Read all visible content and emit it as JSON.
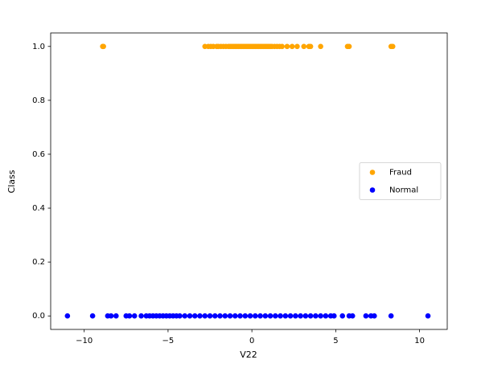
{
  "chart_data": {
    "type": "scatter",
    "xlabel": "V22",
    "ylabel": "Class",
    "xlim": [
      -12,
      11.65
    ],
    "ylim": [
      -0.05,
      1.05
    ],
    "xticks": [
      {
        "value": -10,
        "label": "−10"
      },
      {
        "value": -5,
        "label": "−5"
      },
      0,
      5,
      10
    ],
    "yticks": [
      {
        "value": 0,
        "label": "0.0"
      },
      {
        "value": 0.2,
        "label": "0.2"
      },
      {
        "value": 0.4,
        "label": "0.4"
      },
      {
        "value": 0.6,
        "label": "0.6"
      },
      {
        "value": 0.8,
        "label": "0.8"
      },
      {
        "value": 1,
        "label": "1.0"
      }
    ],
    "legend": "center right",
    "series": [
      {
        "name": "Fraud",
        "color": "#ffa500",
        "x": [
          -8.9,
          -8.85,
          -2.8,
          -2.6,
          -2.45,
          -2.3,
          -2.1,
          -2.0,
          -1.85,
          -1.7,
          -1.55,
          -1.4,
          -1.3,
          -1.2,
          -1.1,
          -1.0,
          -0.9,
          -0.8,
          -0.7,
          -0.6,
          -0.5,
          -0.4,
          -0.3,
          -0.2,
          -0.1,
          0,
          0.1,
          0.2,
          0.3,
          0.4,
          0.5,
          0.6,
          0.7,
          0.8,
          0.9,
          1.0,
          1.1,
          1.2,
          1.35,
          1.5,
          1.65,
          1.8,
          2.1,
          2.4,
          2.7,
          3.1,
          3.4,
          3.5,
          4.1,
          5.7,
          5.8,
          8.3,
          8.4
        ],
        "values": [
          1,
          1,
          1,
          1,
          1,
          1,
          1,
          1,
          1,
          1,
          1,
          1,
          1,
          1,
          1,
          1,
          1,
          1,
          1,
          1,
          1,
          1,
          1,
          1,
          1,
          1,
          1,
          1,
          1,
          1,
          1,
          1,
          1,
          1,
          1,
          1,
          1,
          1,
          1,
          1,
          1,
          1,
          1,
          1,
          1,
          1,
          1,
          1,
          1,
          1,
          1,
          1,
          1
        ]
      },
      {
        "name": "Normal",
        "color": "#0000ff",
        "x": [
          -11,
          -9.5,
          -8.6,
          -8.4,
          -8.1,
          -7.5,
          -7.3,
          -7.0,
          -6.6,
          -6.3,
          -6.1,
          -5.9,
          -5.7,
          -5.5,
          -5.3,
          -5.1,
          -4.9,
          -4.7,
          -4.5,
          -4.3,
          -4.0,
          -3.7,
          -3.4,
          -3.1,
          -2.8,
          -2.5,
          -2.2,
          -1.9,
          -1.6,
          -1.3,
          -1.0,
          -0.7,
          -0.4,
          -0.1,
          0.2,
          0.5,
          0.8,
          1.1,
          1.4,
          1.7,
          2.0,
          2.3,
          2.6,
          2.9,
          3.2,
          3.5,
          3.8,
          4.1,
          4.4,
          4.7,
          4.9,
          5.4,
          5.8,
          6.0,
          6.8,
          7.1,
          7.3,
          8.3,
          10.5
        ],
        "values": [
          0,
          0,
          0,
          0,
          0,
          0,
          0,
          0,
          0,
          0,
          0,
          0,
          0,
          0,
          0,
          0,
          0,
          0,
          0,
          0,
          0,
          0,
          0,
          0,
          0,
          0,
          0,
          0,
          0,
          0,
          0,
          0,
          0,
          0,
          0,
          0,
          0,
          0,
          0,
          0,
          0,
          0,
          0,
          0,
          0,
          0,
          0,
          0,
          0,
          0,
          0,
          0,
          0,
          0,
          0,
          0,
          0,
          0,
          0
        ]
      }
    ]
  }
}
